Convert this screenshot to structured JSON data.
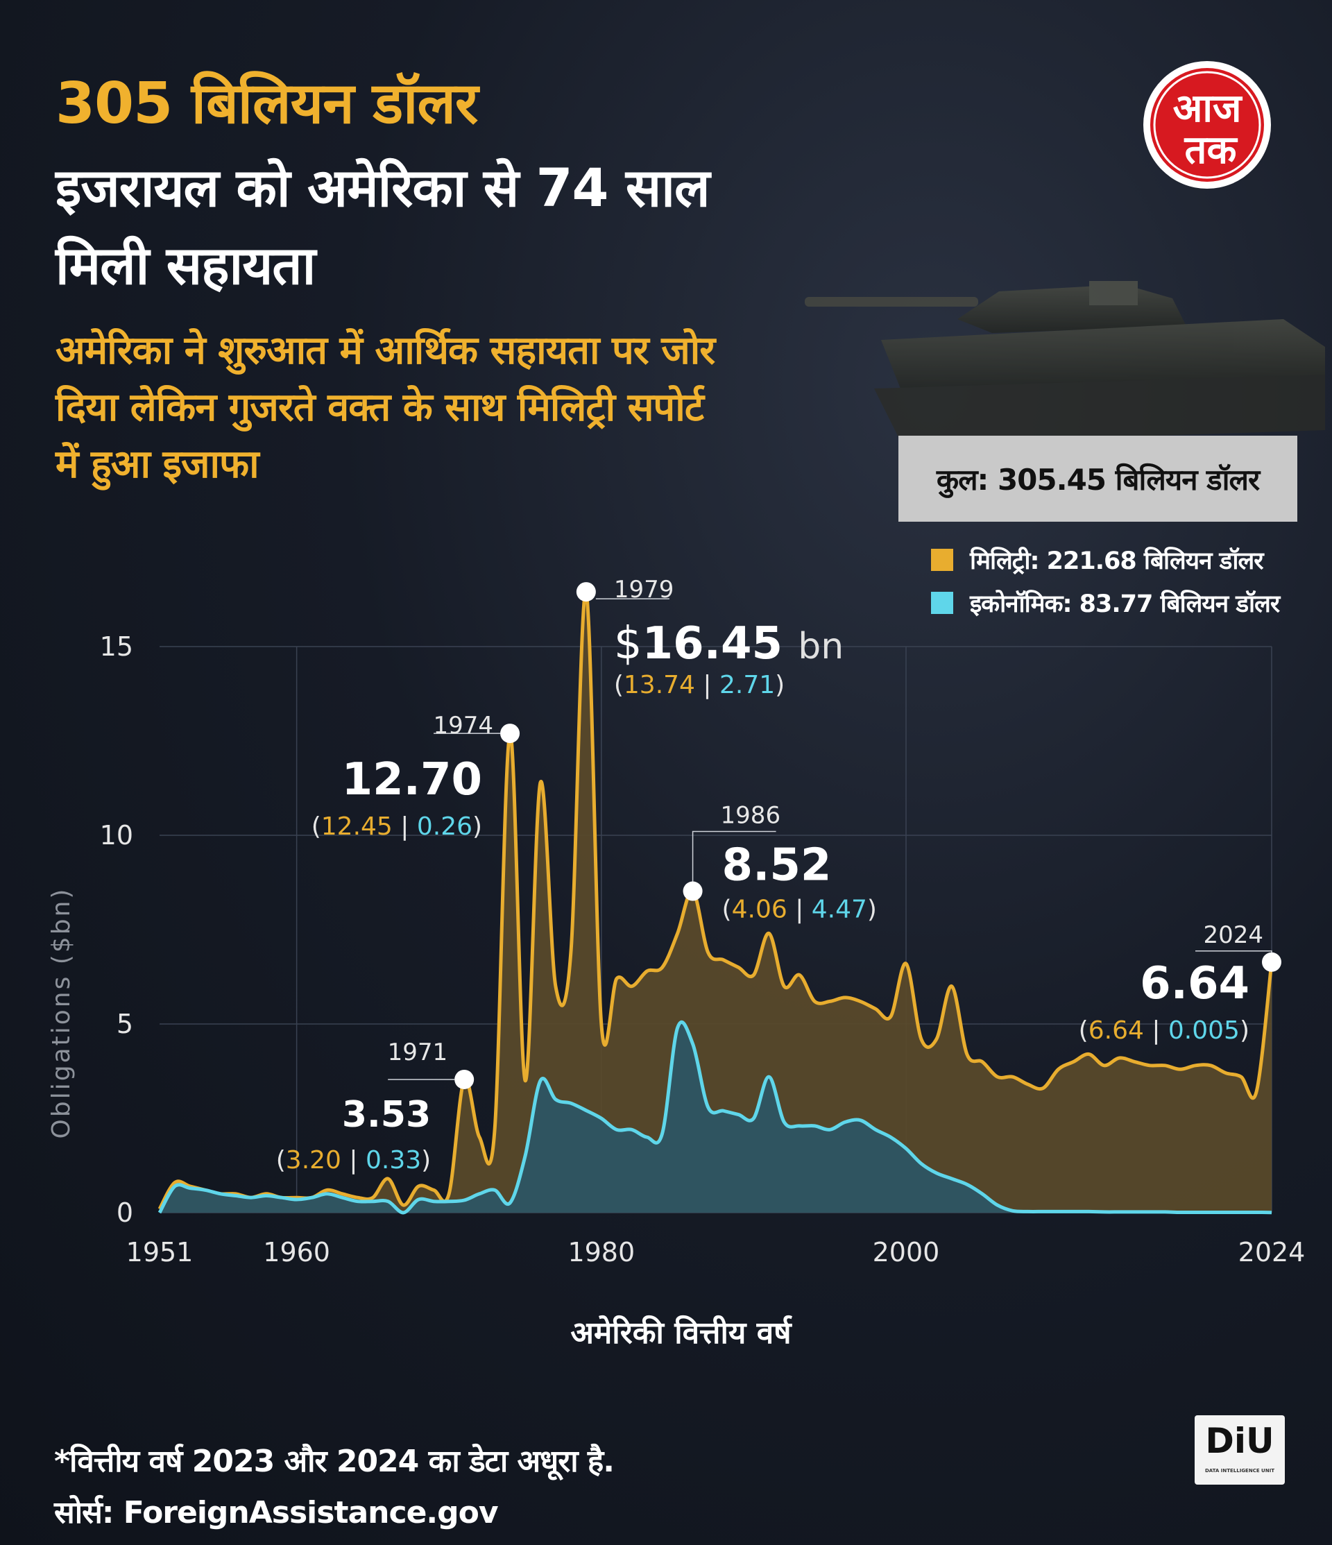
{
  "header": {
    "headline": "305 बिलियन डॉलर",
    "title": "इजरायल को अमेरिका से 74 साल मिली सहायता",
    "subtitle": "अमेरिका ने शुरुआत में आर्थिक सहायता पर जोर दिया लेकिन गुजरते वक्त के साथ मिलिट्री सपोर्ट में हुआ इजाफा"
  },
  "logo": {
    "line1": "आज",
    "line2": "तक"
  },
  "total": "कुल: 305.45 बिलियन डॉलर",
  "legend": {
    "military": "मिलिट्री: 221.68 बिलियन डॉलर",
    "economic": "इकोनॉमिक: 83.77 बिलियन डॉलर"
  },
  "colors": {
    "military": "#e8ad2f",
    "economic": "#5fd6ea",
    "military_fill": "#5a4a2a",
    "economic_fill": "#2d5563"
  },
  "footer": {
    "note": "*वित्तीय वर्ष 2023 और 2024 का डेटा अधूरा है.",
    "source": "सोर्स: ForeignAssistance.gov",
    "diu": "DiU",
    "diu_sub": "DATA INTELLIGENCE UNIT"
  },
  "chart_data": {
    "type": "area",
    "xlabel": "अमेरिकी वित्तीय वर्ष",
    "ylabel": "Obligations ($bn)",
    "ylim": [
      0,
      15
    ],
    "xlim": [
      1951,
      2024
    ],
    "yticks": [
      "0",
      "5",
      "10",
      "15"
    ],
    "xticks": [
      "1951",
      "1960",
      "1980",
      "2000",
      "2024"
    ],
    "grid": true,
    "x": [
      1951,
      1952,
      1953,
      1954,
      1955,
      1956,
      1957,
      1958,
      1959,
      1960,
      1961,
      1962,
      1963,
      1964,
      1965,
      1966,
      1967,
      1968,
      1969,
      1970,
      1971,
      1972,
      1973,
      1974,
      1975,
      1976,
      1977,
      1978,
      1979,
      1980,
      1981,
      1982,
      1983,
      1984,
      1985,
      1986,
      1987,
      1988,
      1989,
      1990,
      1991,
      1992,
      1993,
      1994,
      1995,
      1996,
      1997,
      1998,
      1999,
      2000,
      2001,
      2002,
      2003,
      2004,
      2005,
      2006,
      2007,
      2008,
      2009,
      2010,
      2011,
      2012,
      2013,
      2014,
      2015,
      2016,
      2017,
      2018,
      2019,
      2020,
      2021,
      2022,
      2023,
      2024
    ],
    "series": [
      {
        "name": "मिलिट्री",
        "values": [
          0.1,
          0.8,
          0.7,
          0.6,
          0.5,
          0.5,
          0.4,
          0.5,
          0.4,
          0.4,
          0.4,
          0.6,
          0.5,
          0.4,
          0.4,
          0.9,
          0.2,
          0.7,
          0.6,
          0.5,
          3.53,
          2.0,
          2.2,
          12.7,
          3.5,
          11.4,
          6.0,
          6.9,
          16.45,
          5.0,
          6.2,
          6.0,
          6.4,
          6.5,
          7.4,
          8.52,
          6.9,
          6.7,
          6.5,
          6.3,
          7.4,
          6.0,
          6.3,
          5.6,
          5.6,
          5.7,
          5.6,
          5.4,
          5.2,
          6.6,
          4.6,
          4.6,
          6.0,
          4.2,
          4.0,
          3.6,
          3.6,
          3.4,
          3.3,
          3.8,
          4.0,
          4.2,
          3.9,
          4.1,
          4.0,
          3.9,
          3.9,
          3.8,
          3.9,
          3.9,
          3.7,
          3.6,
          3.2,
          6.64
        ]
      },
      {
        "name": "इकोनॉमिक",
        "values": [
          0.0,
          0.7,
          0.65,
          0.6,
          0.5,
          0.45,
          0.4,
          0.45,
          0.4,
          0.35,
          0.4,
          0.5,
          0.4,
          0.3,
          0.3,
          0.3,
          0.0,
          0.35,
          0.3,
          0.3,
          0.33,
          0.5,
          0.6,
          0.26,
          1.5,
          3.5,
          3.0,
          2.9,
          2.71,
          2.5,
          2.2,
          2.2,
          2.0,
          2.1,
          4.9,
          4.47,
          2.8,
          2.7,
          2.6,
          2.5,
          3.6,
          2.4,
          2.3,
          2.3,
          2.2,
          2.4,
          2.45,
          2.2,
          2.0,
          1.7,
          1.3,
          1.05,
          0.9,
          0.75,
          0.5,
          0.2,
          0.05,
          0.03,
          0.03,
          0.03,
          0.03,
          0.03,
          0.02,
          0.02,
          0.02,
          0.02,
          0.02,
          0.01,
          0.01,
          0.01,
          0.01,
          0.01,
          0.01,
          0.005
        ]
      }
    ],
    "annotations": [
      {
        "year": "1971",
        "total": "3.53",
        "military": "3.20",
        "economic": "0.33"
      },
      {
        "year": "1974",
        "total": "12.70",
        "military": "12.45",
        "economic": "0.26"
      },
      {
        "year": "1979",
        "total": "16.45",
        "prefix": "$",
        "suffix": "bn",
        "military": "13.74",
        "economic": "2.71"
      },
      {
        "year": "1986",
        "total": "8.52",
        "military": "4.06",
        "economic": "4.47"
      },
      {
        "year": "2024",
        "total": "6.64",
        "military": "6.64",
        "economic": "0.005"
      }
    ]
  }
}
